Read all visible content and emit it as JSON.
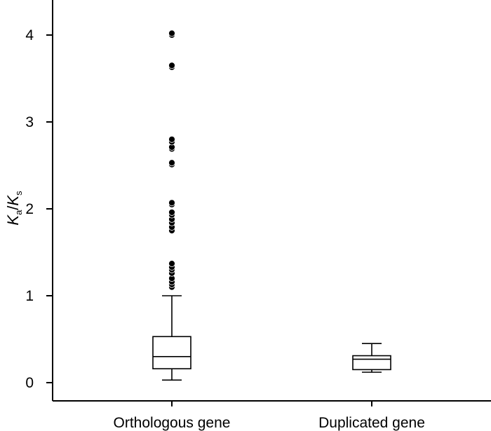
{
  "chart_data": {
    "type": "box",
    "title": "",
    "ylabel": {
      "main_1": "K",
      "sub_1": "a",
      "sep": "/",
      "main_2": "K",
      "sub_2": "s"
    },
    "xlabel": "",
    "ylim": [
      -0.2,
      4.4
    ],
    "yticks": [
      0,
      1,
      2,
      3,
      4
    ],
    "categories": [
      "Orthologous gene",
      "Duplicated gene"
    ],
    "boxes": [
      {
        "category": "Orthologous gene",
        "whisker_low": 0.03,
        "q1": 0.16,
        "median": 0.3,
        "q3": 0.53,
        "whisker_high": 1.0,
        "outliers": [
          1.1,
          1.13,
          1.16,
          1.2,
          1.26,
          1.3,
          1.33,
          1.37,
          1.75,
          1.79,
          1.84,
          1.88,
          1.93,
          1.96,
          2.05,
          2.07,
          2.51,
          2.53,
          2.69,
          2.71,
          2.77,
          2.8,
          3.63,
          3.65,
          4.0,
          4.02
        ]
      },
      {
        "category": "Duplicated gene",
        "whisker_low": 0.12,
        "q1": 0.15,
        "median": 0.27,
        "q3": 0.31,
        "whisker_high": 0.45,
        "outliers": []
      }
    ],
    "colors": {
      "box_fill": "#ffffff",
      "stroke": "#000000",
      "outlier": "#000000"
    },
    "grid": false,
    "legend": "none"
  }
}
